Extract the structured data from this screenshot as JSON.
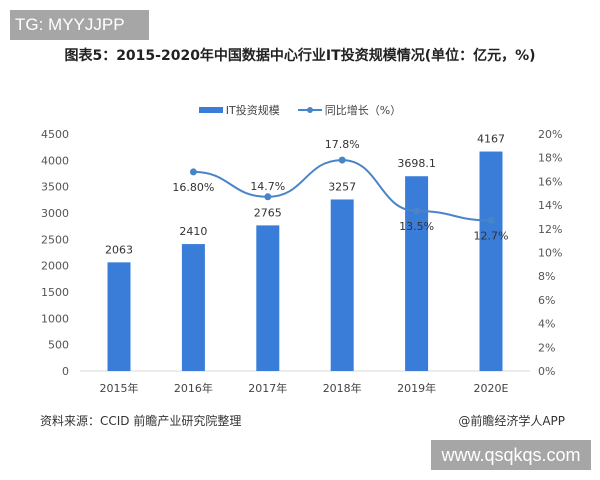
{
  "watermark_top": "TG: MYYJJPP",
  "watermark_bottom": "www.qsqkqs.com",
  "source": "资料来源：CCID 前瞻产业研究院整理",
  "credit": "@前瞻经济学人APP",
  "chart_data": {
    "type": "bar+line",
    "title": "图表5：2015-2020年中国数据中心行业IT投资规模情况(单位：亿元，%)",
    "categories": [
      "2015年",
      "2016年",
      "2017年",
      "2018年",
      "2019年",
      "2020E"
    ],
    "series": [
      {
        "name": "IT投资规模",
        "type": "bar",
        "axis": "left",
        "values": [
          2063,
          2410,
          2765,
          3257,
          3698.1,
          4167
        ],
        "labels": [
          "2063",
          "2410",
          "2765",
          "3257",
          "3698.1",
          "4167"
        ],
        "color": "#3a7dd8"
      },
      {
        "name": "同比增长（%）",
        "type": "line",
        "axis": "right",
        "values": [
          null,
          16.8,
          14.7,
          17.8,
          13.5,
          12.7
        ],
        "labels": [
          "",
          "16.80%",
          "14.7%",
          "17.8%",
          "13.5%",
          "12.7%"
        ],
        "color": "#4a84c8"
      }
    ],
    "y_left": {
      "min": 0,
      "max": 4500,
      "ticks": [
        "0",
        "500",
        "1000",
        "1500",
        "2000",
        "2500",
        "3000",
        "3500",
        "4000",
        "4500"
      ]
    },
    "y_right": {
      "min": 0,
      "max": 20,
      "ticks": [
        "0%",
        "2%",
        "4%",
        "6%",
        "8%",
        "10%",
        "12%",
        "14%",
        "16%",
        "18%",
        "20%"
      ]
    },
    "legend": "top",
    "grid": false
  }
}
